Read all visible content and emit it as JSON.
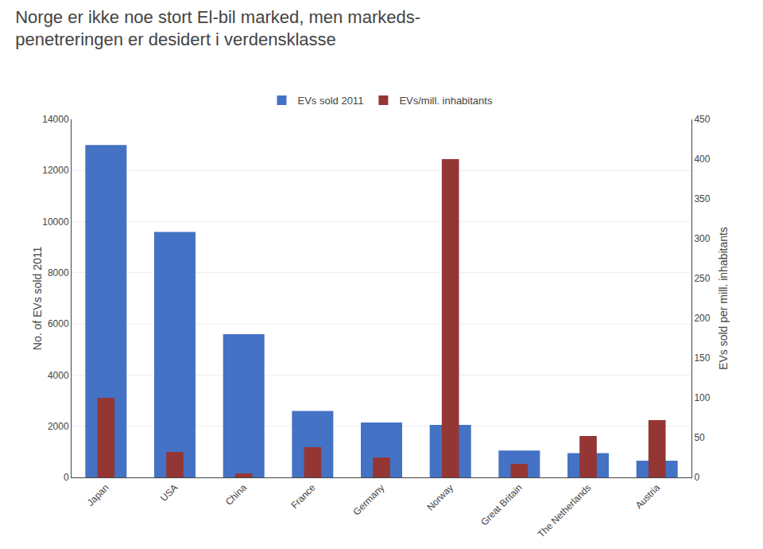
{
  "chart_data": {
    "type": "bar",
    "title": "Norge er ikke noe stort El-bil marked, men markeds-\npenetreringen er desidert i verdensklasse",
    "categories": [
      "Japan",
      "USA",
      "China",
      "France",
      "Germany",
      "Norway",
      "Great Britain",
      "The Netherlands",
      "Austria"
    ],
    "series": [
      {
        "name": "EVs sold 2011",
        "color": "#4472C4",
        "values": [
          13000,
          9600,
          5600,
          2600,
          2150,
          2050,
          1050,
          950,
          650
        ]
      },
      {
        "name": "EVs/mill. inhabitants",
        "color": "#943634",
        "values": [
          100,
          32,
          5,
          38,
          25,
          400,
          17,
          52,
          72
        ],
        "axis": "y2"
      }
    ],
    "ylabel": "No. of EVs sold 2011",
    "y2label": "EVs sold per mill. inhabitants",
    "ylim": [
      0,
      14000
    ],
    "yticks": [
      0,
      2000,
      4000,
      6000,
      8000,
      10000,
      12000,
      14000
    ],
    "y2lim": [
      0,
      450
    ],
    "y2ticks": [
      0,
      50,
      100,
      150,
      200,
      250,
      300,
      350,
      400,
      450
    ],
    "grid": true,
    "legend": "top"
  }
}
